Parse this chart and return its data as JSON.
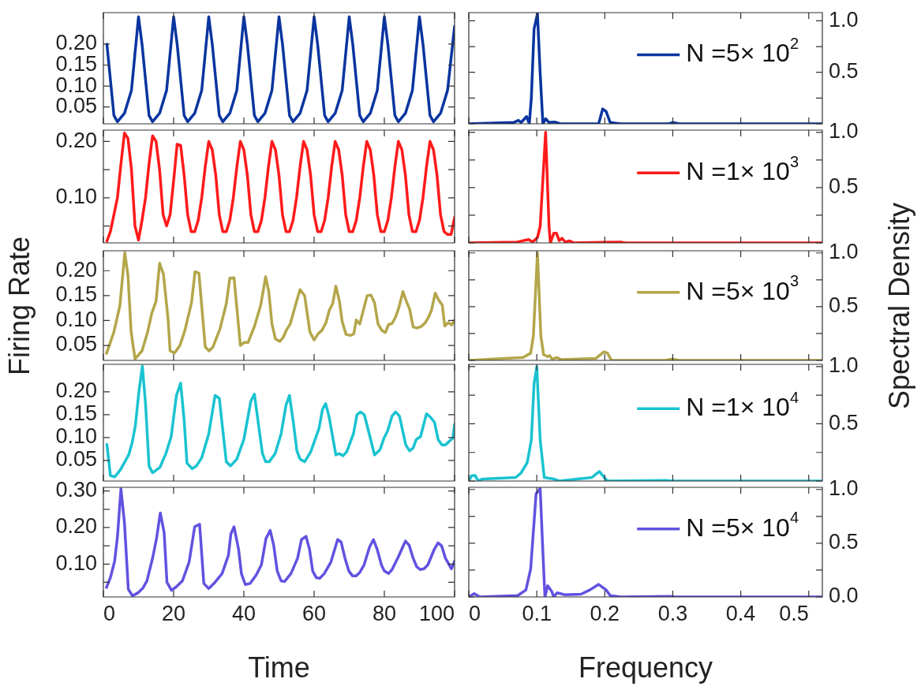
{
  "chart_data": [
    {
      "type": "line",
      "marker": "none",
      "grid": false,
      "tick_labels": "y",
      "xlim": [
        0,
        100
      ],
      "ylim": [
        0.01,
        0.275
      ],
      "xticks": [
        0,
        20,
        40,
        60,
        80,
        100
      ],
      "yticks": [
        0.05,
        {
          "value": 0.1,
          "label": "0.10"
        },
        0.15,
        {
          "value": 0.2,
          "label": "0.20"
        }
      ],
      "series": [
        {
          "color": "#0a35a0",
          "x": [
            1,
            3,
            4,
            6,
            8,
            10,
            11,
            13,
            14,
            16,
            18,
            20,
            21,
            23,
            24,
            26,
            28,
            30,
            31,
            33,
            34,
            36,
            38,
            40,
            41,
            43,
            44,
            46,
            48,
            50,
            51,
            53,
            54,
            56,
            58,
            60,
            61,
            63,
            64,
            66,
            68,
            70,
            71,
            73,
            74,
            76,
            78,
            80,
            81,
            83,
            84,
            86,
            88,
            90,
            91,
            93,
            94,
            96,
            98,
            100
          ],
          "values": [
            0.2,
            0.03,
            0.015,
            0.035,
            0.09,
            0.265,
            0.2,
            0.03,
            0.015,
            0.035,
            0.09,
            0.265,
            0.2,
            0.03,
            0.015,
            0.035,
            0.09,
            0.265,
            0.2,
            0.03,
            0.015,
            0.035,
            0.09,
            0.265,
            0.2,
            0.03,
            0.015,
            0.035,
            0.09,
            0.265,
            0.2,
            0.03,
            0.015,
            0.035,
            0.09,
            0.265,
            0.2,
            0.03,
            0.015,
            0.035,
            0.09,
            0.265,
            0.2,
            0.03,
            0.015,
            0.035,
            0.09,
            0.265,
            0.2,
            0.03,
            0.015,
            0.035,
            0.09,
            0.265,
            0.2,
            0.03,
            0.015,
            0.035,
            0.09,
            0.242
          ]
        }
      ]
    },
    {
      "type": "line",
      "marker": "none",
      "grid": false,
      "tick_labels": "y",
      "legend": "right",
      "xlim": [
        0,
        0.52
      ],
      "ylim": [
        0,
        1.08
      ],
      "xticks": [
        0,
        0.1,
        0.2,
        0.3,
        0.4,
        0.5
      ],
      "yticks": [
        {
          "value": 0,
          "label": null
        },
        {
          "value": 0.25,
          "label": null
        },
        0.5,
        {
          "value": 0.75,
          "label": null
        },
        {
          "value": 1,
          "label": "1.0"
        }
      ],
      "series": [
        {
          "name": "N =5× 10$^{2}$",
          "color": "#0a35a0",
          "x": [
            0,
            0.066,
            0.073,
            0.077,
            0.085,
            0.089,
            0.092,
            0.096,
            0.101,
            0.105,
            0.109,
            0.113,
            0.118,
            0.126,
            0.135,
            0.191,
            0.197,
            0.202,
            0.208,
            0.214,
            0.223,
            0.294,
            0.3,
            0.309,
            0.52
          ],
          "values": [
            0,
            0.013,
            0.034,
            0.013,
            0.071,
            0,
            0.25,
            0.92,
            1.07,
            0.49,
            0,
            0.05,
            0.013,
            0.018,
            0,
            0,
            0.145,
            0.12,
            0.013,
            0.008,
            0,
            0,
            0.013,
            0,
            0
          ]
        }
      ]
    },
    {
      "type": "line",
      "marker": "none",
      "grid": false,
      "tick_labels": "y",
      "xlim": [
        0,
        100
      ],
      "ylim": [
        0.02,
        0.22
      ],
      "xticks": [
        0,
        20,
        40,
        60,
        80,
        100
      ],
      "yticks": [
        {
          "value": 0.05,
          "label": null
        },
        {
          "value": 0.1,
          "label": "0.10"
        },
        {
          "value": 0.15,
          "label": null
        },
        {
          "value": 0.2,
          "label": "0.20"
        }
      ],
      "series": [
        {
          "color": "#ff1a1a",
          "x": [
            1,
            2,
            3,
            4,
            5,
            6,
            7,
            8,
            9,
            10,
            11,
            12,
            13,
            14,
            15,
            16,
            17,
            18,
            19,
            20,
            21,
            22,
            23,
            24,
            25,
            26,
            27,
            28,
            29,
            30,
            31,
            32,
            33,
            34,
            35,
            36,
            37,
            38,
            39,
            40,
            41,
            42,
            43,
            44,
            45,
            46,
            47,
            48,
            49,
            50,
            51,
            52,
            53,
            54,
            55,
            56,
            57,
            58,
            59,
            60,
            61,
            62,
            63,
            64,
            65,
            66,
            67,
            68,
            69,
            70,
            71,
            72,
            73,
            74,
            75,
            76,
            77,
            78,
            79,
            80,
            81,
            82,
            83,
            84,
            85,
            86,
            87,
            88,
            89,
            90,
            91,
            92,
            93,
            94,
            95,
            96,
            97,
            98,
            99,
            100
          ],
          "values": [
            0.023,
            0.04,
            0.07,
            0.1,
            0.16,
            0.215,
            0.205,
            0.15,
            0.05,
            0.025,
            0.06,
            0.1,
            0.16,
            0.21,
            0.2,
            0.15,
            0.07,
            0.05,
            0.07,
            0.13,
            0.195,
            0.193,
            0.14,
            0.07,
            0.04,
            0.04,
            0.06,
            0.1,
            0.155,
            0.2,
            0.185,
            0.14,
            0.07,
            0.04,
            0.04,
            0.06,
            0.1,
            0.155,
            0.2,
            0.185,
            0.14,
            0.07,
            0.04,
            0.04,
            0.06,
            0.1,
            0.155,
            0.2,
            0.185,
            0.14,
            0.07,
            0.04,
            0.04,
            0.06,
            0.1,
            0.155,
            0.2,
            0.185,
            0.14,
            0.07,
            0.04,
            0.04,
            0.06,
            0.1,
            0.155,
            0.2,
            0.185,
            0.14,
            0.07,
            0.04,
            0.04,
            0.06,
            0.1,
            0.155,
            0.2,
            0.185,
            0.14,
            0.07,
            0.04,
            0.04,
            0.06,
            0.1,
            0.155,
            0.2,
            0.185,
            0.14,
            0.07,
            0.04,
            0.04,
            0.06,
            0.1,
            0.155,
            0.2,
            0.185,
            0.14,
            0.07,
            0.04,
            0.035,
            0.035,
            0.065
          ]
        }
      ]
    },
    {
      "type": "line",
      "marker": "none",
      "grid": false,
      "tick_labels": "y",
      "legend": "right",
      "xlim": [
        0,
        0.52
      ],
      "ylim": [
        0,
        1.02
      ],
      "xticks": [
        0,
        0.1,
        0.2,
        0.3,
        0.4,
        0.5
      ],
      "yticks": [
        {
          "value": 0,
          "label": null
        },
        {
          "value": 0.25,
          "label": null
        },
        0.5,
        {
          "value": 0.75,
          "label": null
        },
        {
          "value": 1,
          "label": "1.0"
        }
      ],
      "series": [
        {
          "name": "N =1× 10$^{3}$",
          "color": "#ff1a1a",
          "x": [
            0,
            0.071,
            0.088,
            0.094,
            0.101,
            0.105,
            0.113,
            0.118,
            0.12,
            0.125,
            0.129,
            0.133,
            0.137,
            0.142,
            0.148,
            0.155,
            0.224,
            0.23,
            0.52
          ],
          "values": [
            0,
            0.008,
            0.03,
            0.008,
            0.048,
            0.15,
            1,
            0.15,
            0,
            0.087,
            0.087,
            0.021,
            0.042,
            0.008,
            0.018,
            0,
            0.008,
            0,
            0
          ]
        }
      ]
    },
    {
      "type": "line",
      "marker": "none",
      "grid": false,
      "tick_labels": "y",
      "ylabel": "Firing Rate",
      "xlim": [
        0,
        100
      ],
      "ylim": [
        0.02,
        0.24
      ],
      "xticks": [
        0,
        20,
        40,
        60,
        80,
        100
      ],
      "yticks": [
        0.05,
        {
          "value": 0.1,
          "label": "0.10"
        },
        0.15,
        {
          "value": 0.2,
          "label": "0.20"
        }
      ],
      "series": [
        {
          "color": "#b3a64a",
          "x": [
            0.9,
            3,
            4.7,
            6.1,
            7,
            7.9,
            9,
            11,
            12.6,
            13.8,
            15,
            16,
            17.1,
            18.4,
            19,
            20.3,
            21.8,
            23.2,
            25.1,
            26.1,
            27.2,
            29,
            30.1,
            31.2,
            33.2,
            35,
            36,
            37.2,
            39,
            40.1,
            41.2,
            43.1,
            44.8,
            46.2,
            47.1,
            48,
            49,
            50.2,
            51.2,
            52.2,
            53.2,
            54.9,
            56,
            57.3,
            58.8,
            60,
            61.2,
            62.2,
            63.4,
            64.3,
            65.3,
            66.2,
            67.2,
            68,
            69.1,
            70.3,
            71.3,
            72,
            73,
            75.1,
            76.2,
            77.2,
            78.2,
            79.3,
            80.3,
            81.2,
            82.2,
            83.2,
            84.1,
            85.3,
            86.4,
            87.2,
            88.2,
            89.4,
            90.5,
            91.6,
            92.6,
            93.4,
            94.5,
            95.4,
            96.5,
            97.2,
            98.2,
            99.2,
            100
          ],
          "values": [
            0.034,
            0.077,
            0.13,
            0.236,
            0.19,
            0.077,
            0.023,
            0.039,
            0.077,
            0.115,
            0.139,
            0.215,
            0.193,
            0.104,
            0.039,
            0.035,
            0.05,
            0.08,
            0.136,
            0.198,
            0.195,
            0.047,
            0.039,
            0.047,
            0.083,
            0.134,
            0.185,
            0.186,
            0.05,
            0.056,
            0.056,
            0.09,
            0.131,
            0.188,
            0.158,
            0.093,
            0.063,
            0.058,
            0.066,
            0.082,
            0.093,
            0.136,
            0.162,
            0.15,
            0.077,
            0.061,
            0.074,
            0.08,
            0.096,
            0.12,
            0.134,
            0.169,
            0.139,
            0.098,
            0.072,
            0.07,
            0.073,
            0.101,
            0.093,
            0.15,
            0.151,
            0.136,
            0.093,
            0.08,
            0.076,
            0.092,
            0.094,
            0.107,
            0.125,
            0.158,
            0.136,
            0.123,
            0.087,
            0.085,
            0.088,
            0.095,
            0.107,
            0.12,
            0.155,
            0.142,
            0.131,
            0.089,
            0.096,
            0.091,
            0.101
          ]
        }
      ]
    },
    {
      "type": "line",
      "marker": "none",
      "grid": false,
      "tick_labels": "y",
      "legend": "right",
      "ylabel": "Spectral Density",
      "xlim": [
        0,
        0.52
      ],
      "ylim": [
        0,
        1.02
      ],
      "xticks": [
        0,
        0.1,
        0.2,
        0.3,
        0.4,
        0.5
      ],
      "yticks": [
        {
          "value": 0,
          "label": null
        },
        {
          "value": 0.25,
          "label": null
        },
        0.5,
        {
          "value": 0.75,
          "label": null
        },
        {
          "value": 1,
          "label": "1.0"
        }
      ],
      "series": [
        {
          "name": "N =5× 10$^{3}$",
          "color": "#b3a64a",
          "x": [
            0,
            0.08,
            0.091,
            0.095,
            0.101,
            0.106,
            0.11,
            0.116,
            0.119,
            0.123,
            0.129,
            0.136,
            0.187,
            0.199,
            0.204,
            0.21,
            0.29,
            0.299,
            0.309,
            0.52
          ],
          "values": [
            0,
            0.027,
            0.067,
            0.227,
            1,
            0.227,
            0.053,
            0.035,
            0.045,
            0.008,
            0.027,
            0.008,
            0.019,
            0.08,
            0.067,
            0,
            0,
            0.013,
            0,
            0
          ]
        }
      ]
    },
    {
      "type": "line",
      "marker": "none",
      "grid": false,
      "tick_labels": "y",
      "xlim": [
        0,
        100
      ],
      "ylim": [
        0.005,
        0.26
      ],
      "xticks": [
        0,
        20,
        40,
        60,
        80,
        100
      ],
      "yticks": [
        0.05,
        {
          "value": 0.1,
          "label": "0.10"
        },
        0.15,
        {
          "value": 0.2,
          "label": "0.20"
        }
      ],
      "series": [
        {
          "color": "#1ac3d0",
          "x": [
            1,
            2,
            3.2,
            4.8,
            7.2,
            8.2,
            9.1,
            10.1,
            11.1,
            12,
            13,
            14,
            16.1,
            17.8,
            19.3,
            20.8,
            22,
            23,
            23.8,
            25.3,
            26.5,
            28,
            30,
            31.8,
            33,
            35,
            36.2,
            38,
            40,
            42,
            43,
            44.2,
            45.3,
            46.2,
            47.2,
            48.9,
            50.6,
            52,
            53,
            54.1,
            55.1,
            56,
            57.3,
            59,
            60.3,
            61.4,
            62.4,
            63.3,
            64.3,
            66.2,
            67.2,
            68.2,
            69.3,
            71.2,
            72.2,
            73.2,
            74.3,
            75.9,
            77.2,
            78.8,
            79.9,
            80.9,
            82.2,
            83.2,
            84.3,
            86.1,
            87.2,
            88.2,
            89.1,
            90.3,
            92,
            93.2,
            94.3,
            95.3,
            96.4,
            97.4,
            99.5,
            100
          ],
          "values": [
            0.085,
            0.017,
            0.014,
            0.029,
            0.062,
            0.089,
            0.126,
            0.199,
            0.256,
            0.174,
            0.038,
            0.023,
            0.035,
            0.065,
            0.102,
            0.192,
            0.219,
            0.138,
            0.044,
            0.032,
            0.038,
            0.056,
            0.108,
            0.192,
            0.186,
            0.047,
            0.038,
            0.053,
            0.096,
            0.18,
            0.195,
            0.126,
            0.065,
            0.047,
            0.047,
            0.065,
            0.108,
            0.171,
            0.192,
            0.132,
            0.071,
            0.053,
            0.047,
            0.068,
            0.096,
            0.12,
            0.162,
            0.174,
            0.144,
            0.062,
            0.065,
            0.06,
            0.069,
            0.108,
            0.15,
            0.156,
            0.15,
            0.102,
            0.062,
            0.074,
            0.099,
            0.114,
            0.147,
            0.156,
            0.147,
            0.084,
            0.071,
            0.077,
            0.096,
            0.102,
            0.152,
            0.144,
            0.133,
            0.096,
            0.084,
            0.084,
            0.099,
            0.129
          ]
        }
      ]
    },
    {
      "type": "line",
      "marker": "none",
      "grid": false,
      "tick_labels": "y",
      "legend": "right",
      "xlim": [
        0,
        0.52
      ],
      "ylim": [
        0,
        1.02
      ],
      "xticks": [
        0,
        0.1,
        0.2,
        0.3,
        0.4,
        0.5
      ],
      "yticks": [
        {
          "value": 0,
          "label": null
        },
        {
          "value": 0.25,
          "label": null
        },
        0.5,
        {
          "value": 0.75,
          "label": null
        },
        {
          "value": 1,
          "label": "1.0"
        }
      ],
      "series": [
        {
          "name": "N =1× 10$^{4}$",
          "color": "#1ac3d0",
          "x": [
            0,
            0.004,
            0.009,
            0.014,
            0.02,
            0.069,
            0.077,
            0.086,
            0.092,
            0.096,
            0.1,
            0.105,
            0.111,
            0.118,
            0.125,
            0.133,
            0.181,
            0.192,
            0.203,
            0.207,
            0.289,
            0.302,
            0.52
          ],
          "values": [
            0,
            0.045,
            0.05,
            0,
            0.018,
            0.031,
            0.071,
            0.162,
            0.359,
            0.85,
            1,
            0.359,
            0.031,
            0.024,
            0.018,
            0,
            0.031,
            0.084,
            0.005,
            0,
            0.005,
            0,
            0
          ]
        }
      ]
    },
    {
      "type": "line",
      "marker": "none",
      "grid": false,
      "xlabel": "Time",
      "xlim": [
        0,
        100
      ],
      "ylim": [
        0.01,
        0.31
      ],
      "xticks": [
        0,
        20,
        40,
        60,
        80,
        100
      ],
      "yticks": [
        {
          "value": 0.05,
          "label": null
        },
        {
          "value": 0.1,
          "label": "0.10"
        },
        {
          "value": 0.15,
          "label": null
        },
        {
          "value": 0.2,
          "label": "0.20"
        },
        {
          "value": 0.25,
          "label": null
        },
        {
          "value": 0.3,
          "label": "0.30"
        }
      ],
      "series": [
        {
          "color": "#6252e0",
          "x": [
            0.9,
            2,
            3.2,
            4,
            5,
            6,
            7.1,
            8.3,
            9.8,
            11.3,
            12.4,
            14.1,
            15.2,
            16.2,
            17.3,
            18.1,
            19.4,
            20.8,
            22.5,
            24.4,
            26,
            27.4,
            28.6,
            30,
            31.5,
            33.8,
            35.6,
            36.3,
            37.2,
            38.5,
            39.3,
            40.4,
            41.8,
            43.5,
            45,
            46.3,
            47.5,
            48.5,
            49.5,
            50.6,
            51.6,
            53.4,
            55.3,
            56.4,
            57.7,
            58.7,
            59.6,
            60.6,
            61.6,
            62.9,
            64.8,
            66.7,
            67.7,
            68.8,
            69.9,
            70.9,
            72,
            73,
            74.2,
            75.8,
            76.9,
            77.9,
            79.2,
            80,
            81.2,
            82.2,
            84,
            86,
            87.1,
            88.2,
            89.2,
            90.2,
            91.3,
            92.4,
            94.2,
            95.3,
            96.3,
            97.4,
            99.1,
            100
          ],
          "values": [
            0.036,
            0.063,
            0.108,
            0.174,
            0.306,
            0.213,
            0.031,
            0.013,
            0.021,
            0.035,
            0.054,
            0.12,
            0.174,
            0.24,
            0.186,
            0.05,
            0.028,
            0.038,
            0.054,
            0.105,
            0.202,
            0.209,
            0.047,
            0.033,
            0.047,
            0.074,
            0.124,
            0.182,
            0.202,
            0.14,
            0.074,
            0.044,
            0.047,
            0.07,
            0.098,
            0.17,
            0.192,
            0.151,
            0.081,
            0.054,
            0.052,
            0.074,
            0.116,
            0.167,
            0.176,
            0.14,
            0.081,
            0.063,
            0.061,
            0.074,
            0.106,
            0.167,
            0.16,
            0.116,
            0.081,
            0.068,
            0.068,
            0.077,
            0.097,
            0.147,
            0.167,
            0.142,
            0.097,
            0.081,
            0.074,
            0.085,
            0.12,
            0.163,
            0.151,
            0.116,
            0.093,
            0.085,
            0.087,
            0.098,
            0.14,
            0.158,
            0.15,
            0.116,
            0.087,
            0.108
          ]
        }
      ]
    },
    {
      "type": "line",
      "marker": "none",
      "grid": false,
      "legend": "right",
      "xlabel": "Frequency",
      "xlim": [
        0,
        0.52
      ],
      "ylim": [
        0,
        1.02
      ],
      "xticks": [
        0,
        0.1,
        0.2,
        0.3,
        0.4,
        0.5
      ],
      "yticks": [
        {
          "value": 0,
          "label": "0.0"
        },
        {
          "value": 0.25,
          "label": null
        },
        0.5,
        {
          "value": 0.75,
          "label": null
        },
        {
          "value": 1,
          "label": "1.0"
        }
      ],
      "series": [
        {
          "name": "N =5× 10$^{4}$",
          "color": "#6252e0",
          "x": [
            0,
            0.008,
            0.016,
            0.072,
            0.084,
            0.091,
            0.099,
            0.105,
            0.109,
            0.112,
            0.116,
            0.122,
            0.125,
            0.13,
            0.141,
            0.165,
            0.178,
            0.191,
            0.202,
            0.208,
            0.223,
            0.295,
            0.304,
            0.52
          ],
          "values": [
            0,
            0.031,
            0,
            0.013,
            0.065,
            0.26,
            0.96,
            1.01,
            0.416,
            0,
            0.104,
            0.052,
            0,
            0.039,
            0.021,
            0.026,
            0.065,
            0.117,
            0.065,
            0.013,
            0,
            0.005,
            0,
            0
          ]
        }
      ]
    }
  ]
}
